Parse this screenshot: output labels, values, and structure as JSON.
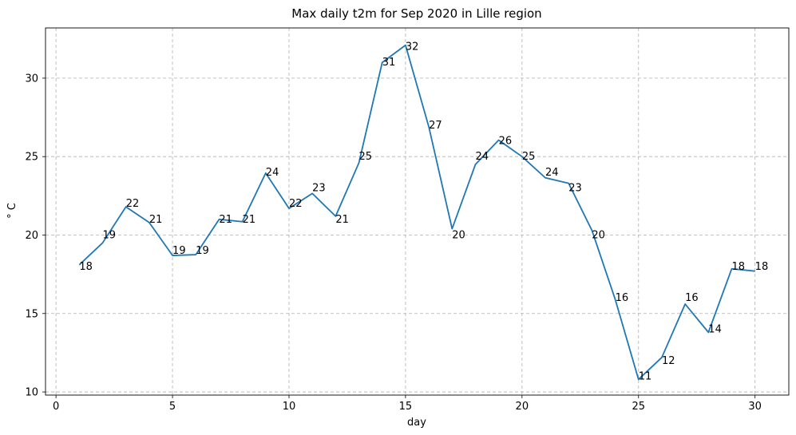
{
  "chart_data": {
    "type": "line",
    "title": "Max daily t2m for Sep 2020 in Lille region",
    "xlabel": "day",
    "ylabel": "° C",
    "xlim": [
      -0.45,
      31.45
    ],
    "ylim": [
      9.8,
      33.2
    ],
    "xticks": [
      0,
      5,
      10,
      15,
      20,
      25,
      30
    ],
    "yticks": [
      10,
      15,
      20,
      25,
      30
    ],
    "grid": true,
    "series_color": "#1f77b4",
    "x": [
      1,
      2,
      3,
      4,
      5,
      6,
      7,
      8,
      9,
      10,
      11,
      12,
      13,
      14,
      15,
      16,
      17,
      18,
      19,
      20,
      21,
      22,
      23,
      24,
      25,
      26,
      27,
      28,
      29,
      30
    ],
    "values": [
      18.1,
      19.5,
      21.8,
      20.8,
      18.7,
      18.75,
      21.0,
      20.85,
      23.95,
      21.7,
      22.65,
      21.2,
      24.6,
      31.0,
      32.1,
      26.9,
      20.4,
      24.5,
      26.05,
      25.0,
      23.65,
      23.3,
      20.3,
      15.9,
      10.8,
      12.2,
      15.6,
      13.8,
      17.85,
      17.7
    ],
    "data_labels": [
      "18",
      "19",
      "22",
      "21",
      "19",
      "19",
      "21",
      "21",
      "24",
      "22",
      "23",
      "21",
      "25",
      "31",
      "32",
      "27",
      "20",
      "24",
      "26",
      "25",
      "24",
      "23",
      "20",
      "16",
      "11",
      "12",
      "16",
      "14",
      "18",
      "18"
    ]
  }
}
